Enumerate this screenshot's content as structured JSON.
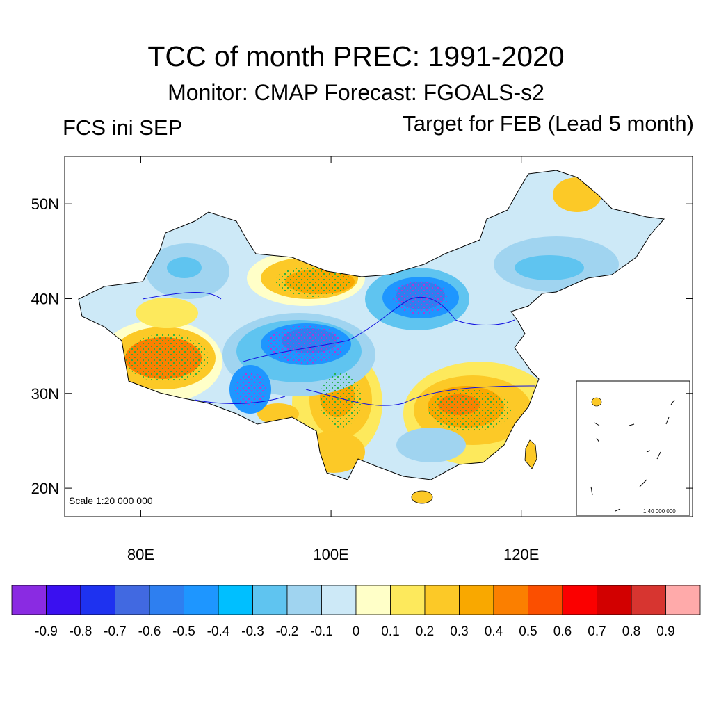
{
  "title": "TCC of month PREC: 1991-2020",
  "subtitle": "Monitor: CMAP   Forecast: FGOALS-s2",
  "left_label": "FCS ini SEP",
  "right_label": "Target for FEB (Lead 5 month)",
  "map": {
    "scale_label": "Scale 1:20 000 000",
    "inset_scale_label": "1:40 000 000",
    "lat_ticks": [
      {
        "value": 20,
        "label": "20N"
      },
      {
        "value": 30,
        "label": "30N"
      },
      {
        "value": 40,
        "label": "40N"
      },
      {
        "value": 50,
        "label": "50N"
      }
    ],
    "lon_ticks": [
      {
        "value": 80,
        "label": "80E"
      },
      {
        "value": 100,
        "label": "100E"
      },
      {
        "value": 120,
        "label": "120E"
      }
    ],
    "lon_range": [
      72,
      138
    ],
    "lat_range": [
      17,
      55
    ]
  },
  "colorbar": {
    "colors": [
      "#8a2be2",
      "#3a10f0",
      "#1e32f0",
      "#4169e1",
      "#2e7ff0",
      "#1e96ff",
      "#00bfff",
      "#5fc4f0",
      "#a0d4f0",
      "#cde9f7",
      "#ffffc8",
      "#fde95c",
      "#fcc927",
      "#f9a800",
      "#fb7f00",
      "#fb4f00",
      "#fb0000",
      "#d20000",
      "#d73530",
      "#ffaaaa"
    ],
    "labels": [
      "-0.9",
      "-0.8",
      "-0.7",
      "-0.6",
      "-0.5",
      "-0.4",
      "-0.3",
      "-0.2",
      "-0.1",
      "0",
      "0.1",
      "0.2",
      "0.3",
      "0.4",
      "0.5",
      "0.6",
      "0.7",
      "0.8",
      "0.9"
    ]
  }
}
